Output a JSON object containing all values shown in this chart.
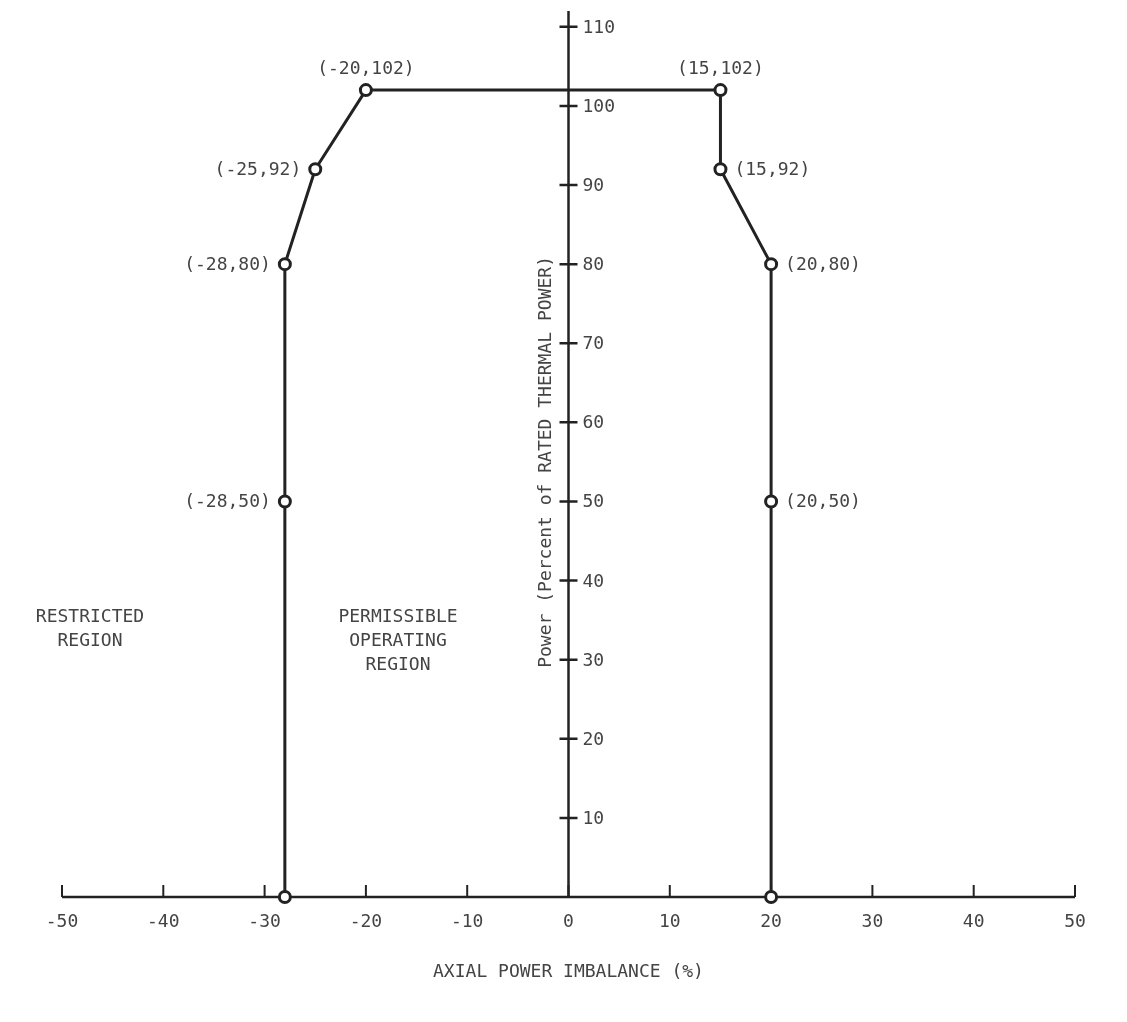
{
  "chart_data": {
    "type": "line",
    "xlabel": "AXIAL POWER IMBALANCE (%)",
    "ylabel": "Power (Percent of RATED THERMAL POWER)",
    "series": [
      {
        "color": "#222222",
        "x": [
          -28,
          -28,
          -28,
          -25,
          -20,
          15,
          15,
          20,
          20,
          20
        ],
        "values": [
          0,
          50,
          80,
          92,
          102,
          102,
          92,
          80,
          50,
          0
        ]
      }
    ],
    "xlim": [
      -50,
      50
    ],
    "xticks": [
      -50,
      -40,
      -30,
      -20,
      -10,
      0,
      10,
      20,
      30,
      40,
      50
    ],
    "ylim": [
      0,
      112
    ],
    "yticks": [
      10,
      20,
      30,
      40,
      50,
      60,
      70,
      80,
      90,
      100,
      110
    ],
    "marker": "circle",
    "line_style": "solid",
    "annotations": [
      "RESTRICTED\nREGION",
      "PERMISSIBLE\nOPERATING\nREGION",
      {
        "text": "(-20,102)",
        "x": -20,
        "y": 102
      },
      {
        "text": "(15,102)",
        "x": 15,
        "y": 102
      },
      {
        "text": "(-25,92)",
        "x": -25,
        "y": 92
      },
      {
        "text": "(15,92)",
        "x": 15,
        "y": 92
      },
      {
        "text": "(-28,80)",
        "x": -28,
        "y": 80
      },
      {
        "text": "(20,80)",
        "x": 20,
        "y": 80
      },
      {
        "text": "(-28,50)",
        "x": -28,
        "y": 50
      },
      {
        "text": "(20,50)",
        "x": 20,
        "y": 50
      }
    ]
  }
}
